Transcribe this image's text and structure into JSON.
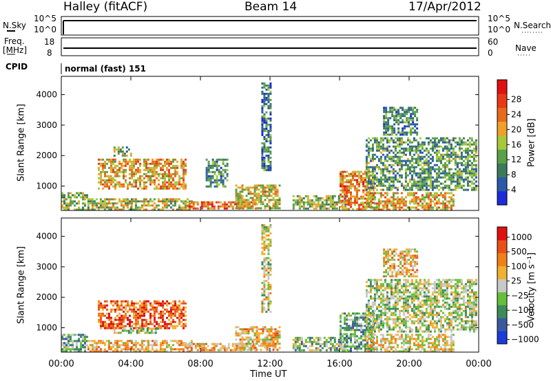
{
  "header": {
    "station": "Halley (fitACF)",
    "beam": "Beam 14",
    "date": "17/Apr/2012"
  },
  "top_panels": {
    "nsky_label": "N.Sky",
    "nsky_ticks": [
      "10^5",
      "10^0"
    ],
    "nsearch_label": "N.Search",
    "nsearch_ticks": [
      "10^5",
      "10^0"
    ],
    "freq_label": "Freq.",
    "freq_unit": "[MHz]",
    "freq_ticks": [
      "18",
      "8"
    ],
    "nave_label": "Nave",
    "nave_ticks": [
      "60",
      "0"
    ],
    "cpid_label": "CPID",
    "cpid_value": "normal (fast) 151"
  },
  "chart_data": [
    {
      "type": "heatmap",
      "name": "power",
      "ylabel": "Slant Range [km]",
      "xlabel": "",
      "x_ticks": [],
      "y_ticks": [
        "1000",
        "2000",
        "3000",
        "4000"
      ],
      "ylim": [
        200,
        4600
      ],
      "xlim_hours": [
        0,
        24
      ],
      "colorbar_label": "Power [dB]",
      "colorbar_ticks": [
        "4",
        "8",
        "12",
        "16",
        "20",
        "24",
        "28"
      ],
      "colorbar_colors": [
        "#1d2bd8",
        "#2a5aa8",
        "#3b7a5a",
        "#5aa04a",
        "#a8c83a",
        "#f0a028",
        "#e86a1a",
        "#e83a18",
        "#e01010"
      ],
      "regions": [
        {
          "x0": 2.1,
          "x1": 7.2,
          "y0": 900,
          "y1": 1900,
          "level": 0.62
        },
        {
          "x0": 3.0,
          "x1": 4.0,
          "y0": 2000,
          "y1": 2300,
          "level": 0.4
        },
        {
          "x0": 0.0,
          "x1": 1.5,
          "y0": 250,
          "y1": 800,
          "level": 0.45
        },
        {
          "x0": 1.5,
          "x1": 7.5,
          "y0": 250,
          "y1": 600,
          "level": 0.5
        },
        {
          "x0": 7.2,
          "x1": 11.2,
          "y0": 250,
          "y1": 500,
          "level": 0.7
        },
        {
          "x0": 10.0,
          "x1": 12.5,
          "y0": 300,
          "y1": 1050,
          "level": 0.55
        },
        {
          "x0": 8.3,
          "x1": 9.5,
          "y0": 1000,
          "y1": 1900,
          "level": 0.3
        },
        {
          "x0": 13.3,
          "x1": 16.5,
          "y0": 250,
          "y1": 700,
          "level": 0.45
        },
        {
          "x0": 16.0,
          "x1": 18.0,
          "y0": 250,
          "y1": 1500,
          "level": 0.68
        },
        {
          "x0": 17.5,
          "x1": 22.5,
          "y0": 250,
          "y1": 800,
          "level": 0.6
        },
        {
          "x0": 17.5,
          "x1": 23.8,
          "y0": 900,
          "y1": 2600,
          "level": 0.35
        },
        {
          "x0": 18.5,
          "x1": 20.5,
          "y0": 2700,
          "y1": 3600,
          "level": 0.3
        },
        {
          "x0": 11.5,
          "x1": 12.0,
          "y0": 1500,
          "y1": 4400,
          "level": 0.25
        }
      ]
    },
    {
      "type": "heatmap",
      "name": "velocity",
      "ylabel": "Slant Range [km]",
      "xlabel": "Time UT",
      "x_ticks": [
        "00:00",
        "04:00",
        "08:00",
        "12:00",
        "16:00",
        "20:00",
        "00:00"
      ],
      "y_ticks": [
        "1000",
        "2000",
        "3000",
        "4000"
      ],
      "ylim": [
        200,
        4600
      ],
      "xlim_hours": [
        0,
        24
      ],
      "colorbar_label": "Velocity [m s⁻¹]",
      "colorbar_ticks": [
        "1000",
        "500",
        "100",
        "25",
        "−25",
        "−100",
        "−500",
        "−1000"
      ],
      "colorbar_colors": [
        "#1d3bd8",
        "#3a5aa0",
        "#3f8a5a",
        "#66c03a",
        "#c8c8c8",
        "#f0b030",
        "#f08018",
        "#e85018",
        "#e01010"
      ],
      "regions": [
        {
          "x0": 2.1,
          "x1": 7.2,
          "y0": 1000,
          "y1": 1900,
          "level": 0.82
        },
        {
          "x0": 3.0,
          "x1": 5.5,
          "y0": 800,
          "y1": 1000,
          "level": 0.45
        },
        {
          "x0": 0.0,
          "x1": 1.5,
          "y0": 250,
          "y1": 800,
          "level": 0.35
        },
        {
          "x0": 1.5,
          "x1": 7.5,
          "y0": 250,
          "y1": 600,
          "level": 0.62
        },
        {
          "x0": 7.2,
          "x1": 11.2,
          "y0": 250,
          "y1": 500,
          "level": 0.66
        },
        {
          "x0": 10.0,
          "x1": 12.5,
          "y0": 300,
          "y1": 1050,
          "level": 0.6
        },
        {
          "x0": 13.3,
          "x1": 16.5,
          "y0": 250,
          "y1": 700,
          "level": 0.4
        },
        {
          "x0": 16.0,
          "x1": 18.0,
          "y0": 250,
          "y1": 1500,
          "level": 0.35
        },
        {
          "x0": 17.5,
          "x1": 22.5,
          "y0": 250,
          "y1": 800,
          "level": 0.55
        },
        {
          "x0": 17.5,
          "x1": 23.8,
          "y0": 900,
          "y1": 2600,
          "level": 0.45
        },
        {
          "x0": 18.5,
          "x1": 20.5,
          "y0": 2700,
          "y1": 3600,
          "level": 0.6
        },
        {
          "x0": 11.5,
          "x1": 12.0,
          "y0": 1500,
          "y1": 4400,
          "level": 0.5
        }
      ]
    }
  ]
}
